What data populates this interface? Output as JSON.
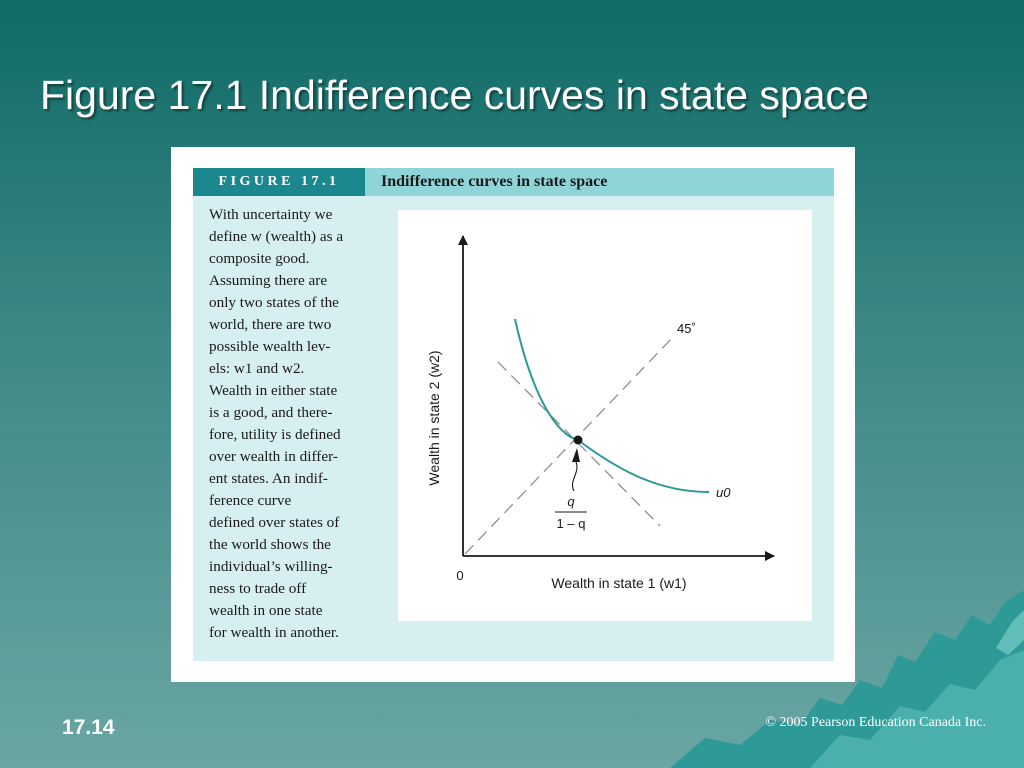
{
  "slide": {
    "title": "Figure 17.1 Indifference curves in state space",
    "number": "17.14",
    "copyright": "© 2005 Pearson Education Canada Inc."
  },
  "colors": {
    "background_top": "#0f6a66",
    "background_bottom": "#6aa6a3",
    "figure_label_bg": "#1b888f",
    "figure_header_bg": "#8fd5d8",
    "figure_panel_bg": "#d6eff0",
    "curve": "#2a9a98"
  },
  "figure": {
    "label": "FIGURE 17.1",
    "title": "Indifference curves in state space",
    "caption_lines": [
      "With uncertainty we",
      "define w (wealth) as a",
      "composite good.",
      "Assuming there are",
      "only two states of the",
      "world, there are two",
      "possible wealth lev-",
      "els: w1 and w2.",
      "Wealth in either state",
      "is a good, and there-",
      "fore, utility is defined",
      "over wealth in differ-",
      "ent states. An indif-",
      "ference curve",
      "defined over states of",
      "the world shows the",
      "individual’s willing-",
      "ness to trade off",
      "wealth in one state",
      "for wealth in another."
    ]
  },
  "diagram": {
    "x_axis_label": "Wealth in state 1 (w1)",
    "y_axis_label": "Wealth in state 2 (w2)",
    "origin_label": "0",
    "line_label": "45˚",
    "curve_label": "u0",
    "slope_numerator": "q",
    "slope_denominator": "1 – q"
  }
}
